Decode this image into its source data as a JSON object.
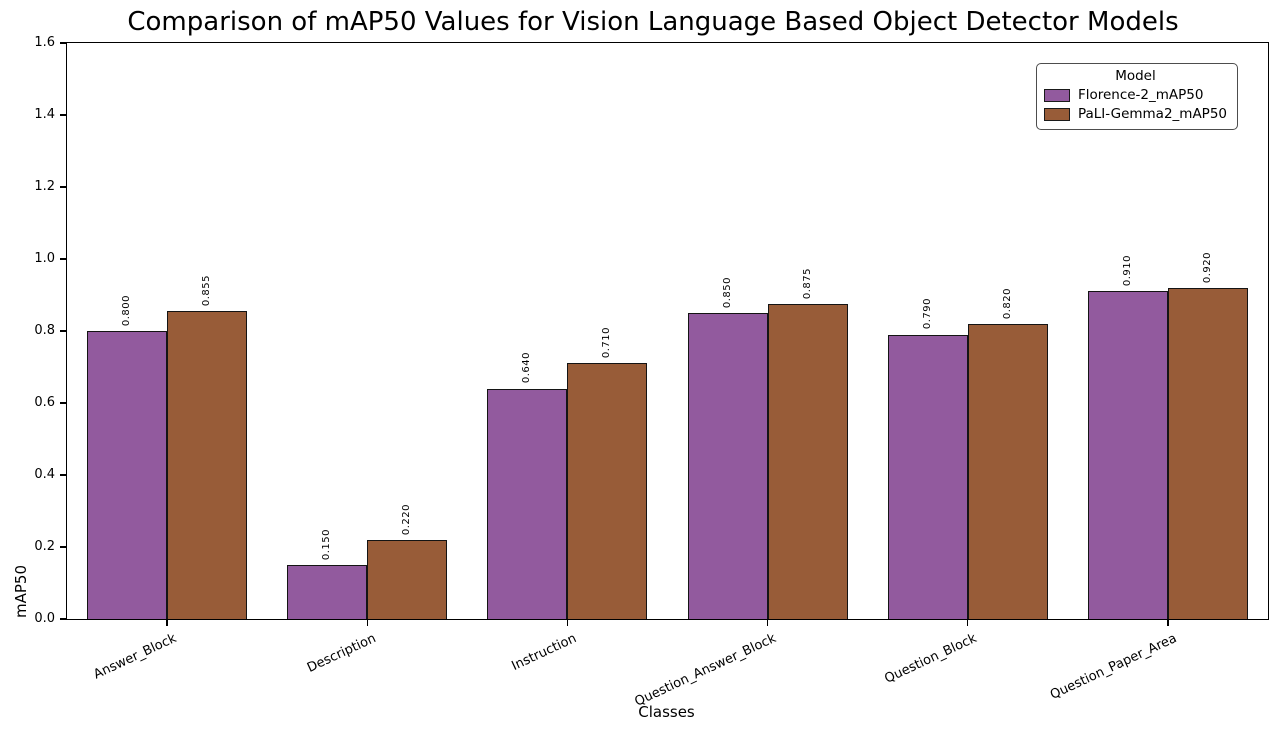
{
  "title": "Comparison of mAP50 Values for Vision Language Based Object Detector Models",
  "chart_data": {
    "type": "bar",
    "title": "Comparison of mAP50 Values for Vision Language Based Object Detector Models",
    "xlabel": "Classes",
    "ylabel": "mAP50",
    "categories": [
      "Answer_Block",
      "Description",
      "Instruction",
      "Question_Answer_Block",
      "Question_Block",
      "Question_Paper_Area"
    ],
    "series": [
      {
        "name": "Florence-2_mAP50",
        "color": "#925a9e",
        "values": [
          0.8,
          0.15,
          0.64,
          0.85,
          0.79,
          0.91
        ]
      },
      {
        "name": "PaLI-Gemma2_mAP50",
        "color": "#985c38",
        "values": [
          0.855,
          0.22,
          0.71,
          0.875,
          0.82,
          0.92
        ]
      }
    ],
    "ylim": [
      0.0,
      1.6
    ],
    "ytick_step": 0.2,
    "ytick_labels": [
      "0.0",
      "0.2",
      "0.4",
      "0.6",
      "0.8",
      "1.0",
      "1.2",
      "1.4",
      "1.6"
    ],
    "bar_labels_decimal_places": 3,
    "xtick_rotation_deg": 25,
    "grid": false,
    "legend": {
      "title": "Model",
      "position": "top-right",
      "entries": [
        "Florence-2_mAP50",
        "PaLI-Gemma2_mAP50"
      ]
    },
    "bar_edge_color": "#141414"
  }
}
